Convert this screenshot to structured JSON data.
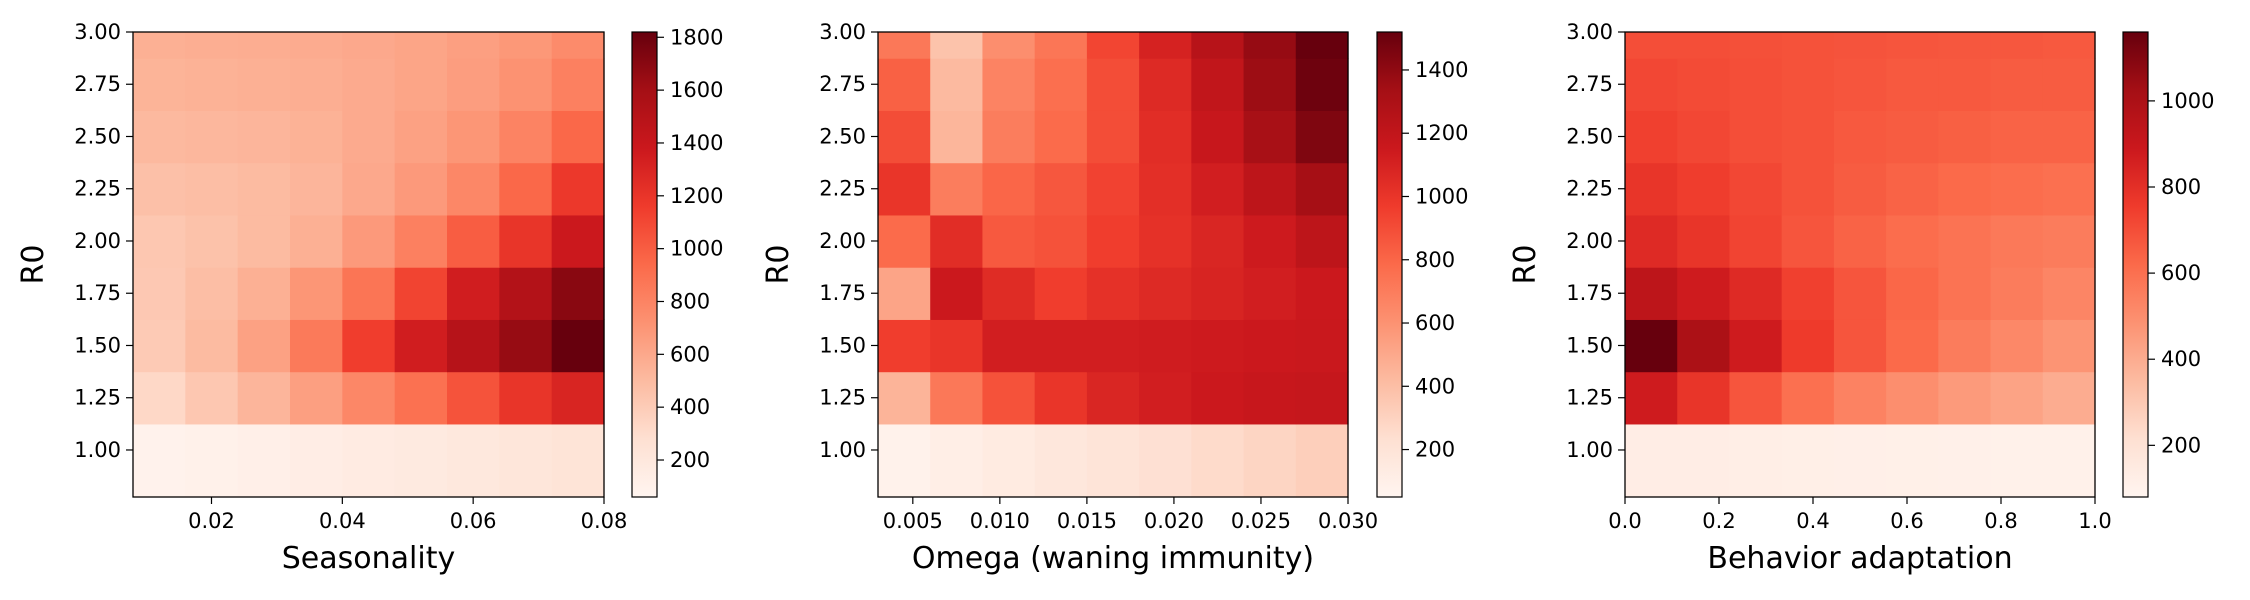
{
  "chart_data": [
    {
      "type": "heatmap",
      "title": "",
      "xlabel": "Seasonality",
      "ylabel": "R0",
      "xlim": [
        0.008,
        0.08
      ],
      "ylim": [
        0.775,
        3.0
      ],
      "x_ticks": [
        "0.02",
        "0.04",
        "0.06",
        "0.08"
      ],
      "x_tick_values": [
        0.02,
        0.04,
        0.06,
        0.08
      ],
      "y_ticks": [
        "1.00",
        "1.25",
        "1.50",
        "1.75",
        "2.00",
        "2.25",
        "2.50",
        "2.75",
        "3.00"
      ],
      "y_values": [
        1.0,
        1.25,
        1.5,
        1.75,
        2.0,
        2.25,
        2.5,
        2.75,
        3.0
      ],
      "colorbar": {
        "min": 60,
        "max": 1820,
        "ticks": [
          200,
          400,
          600,
          800,
          1000,
          1200,
          1400,
          1600,
          1800
        ],
        "colormap": "Reds"
      },
      "values": [
        [
          90,
          105,
          120,
          140,
          160,
          180,
          200,
          220,
          240
        ],
        [
          330,
          430,
          530,
          650,
          780,
          900,
          1050,
          1200,
          1300
        ],
        [
          410,
          500,
          640,
          850,
          1150,
          1350,
          1500,
          1650,
          1820
        ],
        [
          420,
          480,
          560,
          700,
          880,
          1120,
          1350,
          1520,
          1700
        ],
        [
          430,
          460,
          500,
          560,
          680,
          820,
          1000,
          1200,
          1380
        ],
        [
          470,
          480,
          500,
          530,
          600,
          680,
          780,
          950,
          1180
        ],
        [
          510,
          520,
          530,
          550,
          590,
          640,
          700,
          800,
          950
        ],
        [
          540,
          550,
          560,
          570,
          590,
          620,
          660,
          720,
          820
        ],
        [
          560,
          570,
          575,
          585,
          600,
          620,
          650,
          690,
          760
        ]
      ]
    },
    {
      "type": "heatmap",
      "title": "",
      "xlabel": "Omega (waning immunity)",
      "ylabel": "R0",
      "xlim": [
        0.003,
        0.03
      ],
      "ylim": [
        0.775,
        3.0
      ],
      "x_ticks": [
        "0.005",
        "0.010",
        "0.015",
        "0.020",
        "0.025",
        "0.030"
      ],
      "x_tick_values": [
        0.005,
        0.01,
        0.015,
        0.02,
        0.025,
        0.03
      ],
      "y_ticks": [
        "1.00",
        "1.25",
        "1.50",
        "1.75",
        "2.00",
        "2.25",
        "2.50",
        "2.75",
        "3.00"
      ],
      "y_values": [
        1.0,
        1.25,
        1.5,
        1.75,
        2.0,
        2.25,
        2.5,
        2.75,
        3.0
      ],
      "colorbar": {
        "min": 50,
        "max": 1520,
        "ticks": [
          200,
          400,
          600,
          800,
          1000,
          1200,
          1400
        ],
        "colormap": "Reds"
      },
      "values": [
        [
          80,
          110,
          140,
          170,
          200,
          230,
          260,
          290,
          320
        ],
        [
          450,
          720,
          880,
          1000,
          1080,
          1120,
          1150,
          1170,
          1180
        ],
        [
          960,
          1000,
          1120,
          1120,
          1120,
          1130,
          1140,
          1150,
          1160
        ],
        [
          520,
          1150,
          1050,
          960,
          1020,
          1060,
          1090,
          1120,
          1150
        ],
        [
          780,
          1040,
          850,
          880,
          960,
          1020,
          1080,
          1140,
          1220
        ],
        [
          1000,
          700,
          800,
          860,
          940,
          1030,
          1120,
          1220,
          1330
        ],
        [
          900,
          440,
          700,
          780,
          900,
          1040,
          1170,
          1320,
          1450
        ],
        [
          820,
          420,
          670,
          760,
          900,
          1060,
          1200,
          1360,
          1500
        ],
        [
          720,
          380,
          620,
          730,
          930,
          1100,
          1250,
          1380,
          1520
        ]
      ]
    },
    {
      "type": "heatmap",
      "title": "",
      "xlabel": "Behavior adaptation",
      "ylabel": "R0",
      "xlim": [
        0.0,
        1.0
      ],
      "ylim": [
        0.775,
        3.0
      ],
      "x_ticks": [
        "0.0",
        "0.2",
        "0.4",
        "0.6",
        "0.8",
        "1.0"
      ],
      "x_tick_values": [
        0.0,
        0.2,
        0.4,
        0.6,
        0.8,
        1.0
      ],
      "y_ticks": [
        "1.00",
        "1.25",
        "1.50",
        "1.75",
        "2.00",
        "2.25",
        "2.50",
        "2.75",
        "3.00"
      ],
      "y_values": [
        1.0,
        1.25,
        1.5,
        1.75,
        2.0,
        2.25,
        2.5,
        2.75,
        3.0
      ],
      "colorbar": {
        "min": 80,
        "max": 1160,
        "ticks": [
          200,
          400,
          600,
          800,
          1000
        ],
        "colormap": "Reds"
      },
      "values": [
        [
          130,
          130,
          125,
          120,
          118,
          115,
          110,
          108,
          105
        ],
        [
          880,
          780,
          680,
          600,
          540,
          500,
          460,
          430,
          400
        ],
        [
          1160,
          1000,
          880,
          760,
          680,
          620,
          560,
          520,
          480
        ],
        [
          940,
          880,
          820,
          740,
          680,
          630,
          590,
          560,
          530
        ],
        [
          820,
          780,
          730,
          680,
          640,
          610,
          590,
          570,
          560
        ],
        [
          780,
          750,
          720,
          690,
          660,
          640,
          620,
          610,
          600
        ],
        [
          740,
          720,
          700,
          690,
          670,
          660,
          650,
          640,
          640
        ],
        [
          720,
          710,
          700,
          690,
          680,
          670,
          670,
          660,
          660
        ],
        [
          700,
          700,
          695,
          690,
          685,
          680,
          675,
          675,
          670
        ]
      ]
    }
  ]
}
